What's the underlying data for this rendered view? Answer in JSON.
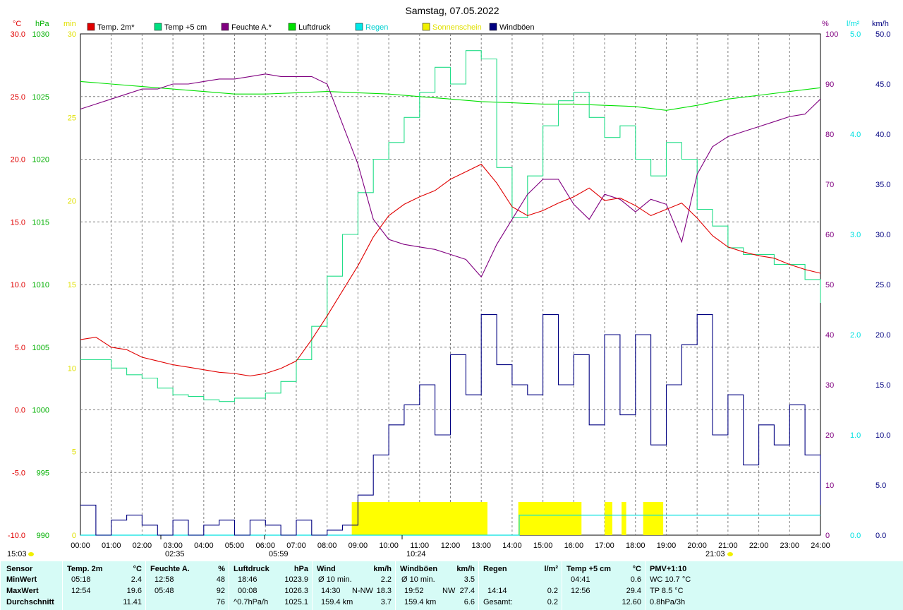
{
  "chart_data": {
    "type": "line",
    "title": "Samstag, 07.05.2022",
    "x_ticks": [
      "00:00",
      "01:00",
      "02:00",
      "03:00",
      "04:00",
      "05:00",
      "06:00",
      "07:00",
      "08:00",
      "09:00",
      "10:00",
      "11:00",
      "12:00",
      "13:00",
      "14:00",
      "15:00",
      "16:00",
      "17:00",
      "18:00",
      "19:00",
      "20:00",
      "21:00",
      "22:00",
      "23:00",
      "24:00"
    ],
    "legend": [
      {
        "name": "Temp. 2m*",
        "color": "#e00000"
      },
      {
        "name": "Temp +5 cm",
        "color": "#00e080"
      },
      {
        "name": "Feuchte A.*",
        "color": "#800080"
      },
      {
        "name": "Luftdruck",
        "color": "#00e000"
      },
      {
        "name": "Regen",
        "color": "#00e8e8"
      },
      {
        "name": "Sonnenschein",
        "color": "#f0f000"
      },
      {
        "name": "Windböen",
        "color": "#000080"
      }
    ],
    "axes": {
      "temp": {
        "unit": "°C",
        "color": "#e00000",
        "ticks": [
          "30.0",
          "25.0",
          "20.0",
          "15.0",
          "10.0",
          "5.0",
          "0.0",
          "-5.0",
          "-10.0"
        ],
        "range": [
          -10,
          30
        ]
      },
      "pressure": {
        "unit": "hPa",
        "color": "#00b000",
        "ticks": [
          "1030",
          "1025",
          "1020",
          "1015",
          "1010",
          "1005",
          "1000",
          "995",
          "990"
        ],
        "range": [
          990,
          1030
        ]
      },
      "sun": {
        "unit": "min",
        "color": "#e0e000",
        "ticks": [
          "30",
          "25",
          "20",
          "15",
          "10",
          "5",
          "0"
        ],
        "range": [
          0,
          30
        ]
      },
      "humidity": {
        "unit": "%",
        "color": "#800080",
        "ticks": [
          "100",
          "90",
          "80",
          "70",
          "60",
          "50",
          "40",
          "30",
          "20",
          "10",
          "0"
        ],
        "range": [
          0,
          100
        ]
      },
      "rain": {
        "unit": "l/m²",
        "color": "#00e0e0",
        "ticks": [
          "5.0",
          "4.0",
          "3.0",
          "2.0",
          "1.0",
          "0.0"
        ],
        "range": [
          0,
          5
        ]
      },
      "gust": {
        "unit": "km/h",
        "color": "#000080",
        "ticks": [
          "50.0",
          "45.0",
          "40.0",
          "35.0",
          "30.0",
          "25.0",
          "20.0",
          "15.0",
          "10.0",
          "5.0",
          "0.0"
        ],
        "range": [
          0,
          50
        ]
      }
    },
    "series": [
      {
        "name": "Temp. 2m*",
        "axis": "temp",
        "color": "#e00000",
        "x": [
          0,
          0.5,
          1,
          1.5,
          2,
          2.5,
          3,
          3.5,
          4,
          4.5,
          5,
          5.5,
          6,
          6.5,
          7,
          7.5,
          8,
          8.5,
          9,
          9.5,
          10,
          10.5,
          11,
          11.5,
          12,
          12.5,
          13,
          13.5,
          14,
          14.5,
          15,
          15.5,
          16,
          16.5,
          17,
          17.5,
          18,
          18.5,
          19,
          19.5,
          20,
          20.5,
          21,
          21.5,
          22,
          22.5,
          23,
          23.5,
          24
        ],
        "values": [
          5.6,
          5.8,
          5.0,
          4.8,
          4.2,
          3.9,
          3.6,
          3.4,
          3.2,
          3.0,
          2.9,
          2.7,
          2.9,
          3.3,
          3.9,
          5.6,
          7.5,
          9.5,
          11.5,
          13.8,
          15.5,
          16.4,
          17.0,
          17.5,
          18.4,
          19.0,
          19.6,
          18.1,
          16.2,
          15.5,
          15.9,
          16.5,
          17.0,
          17.7,
          16.7,
          16.9,
          16.3,
          15.5,
          16.0,
          16.5,
          15.3,
          13.9,
          13.0,
          12.6,
          12.3,
          12.1,
          11.6,
          11.2,
          10.9
        ]
      },
      {
        "name": "Temp +5 cm",
        "axis": "sun",
        "color": "#22dd88",
        "x": [
          0,
          0.5,
          1,
          1.5,
          2,
          2.5,
          3,
          3.5,
          4,
          4.5,
          5,
          5.5,
          6,
          6.5,
          7,
          7.5,
          8,
          8.5,
          9,
          9.5,
          10,
          10.5,
          11,
          11.5,
          12,
          12.5,
          13,
          13.5,
          14,
          14.5,
          15,
          15.5,
          16,
          16.5,
          17,
          17.5,
          18,
          18.5,
          19,
          19.5,
          20,
          20.5,
          21,
          21.5,
          22,
          22.5,
          23,
          23.5,
          24
        ],
        "values": [
          10.5,
          10.5,
          10.0,
          9.6,
          9.4,
          8.8,
          8.4,
          8.3,
          8.1,
          8.0,
          8.2,
          8.2,
          8.5,
          9.2,
          10.5,
          12.5,
          15.5,
          18.0,
          20.5,
          22.5,
          23.5,
          25.0,
          26.5,
          28.0,
          27.0,
          29.0,
          28.5,
          22.0,
          19.0,
          21.5,
          24.5,
          26.0,
          26.5,
          25.0,
          23.8,
          24.5,
          22.5,
          21.5,
          23.5,
          22.5,
          19.5,
          18.5,
          17.2,
          16.8,
          16.8,
          16.2,
          16.2,
          15.3,
          13.9
        ]
      },
      {
        "name": "Feuchte A.*",
        "axis": "humidity",
        "color": "#800080",
        "x": [
          0,
          0.5,
          1,
          1.5,
          2,
          2.5,
          3,
          3.5,
          4,
          4.5,
          5,
          5.5,
          6,
          6.5,
          7,
          7.5,
          8,
          8.5,
          9,
          9.5,
          10,
          10.5,
          11,
          11.5,
          12,
          12.5,
          13,
          13.5,
          14,
          14.5,
          15,
          15.5,
          16,
          16.5,
          17,
          17.5,
          18,
          18.5,
          19,
          19.5,
          20,
          20.5,
          21,
          21.5,
          22,
          22.5,
          23,
          23.5,
          24
        ],
        "values": [
          85,
          86,
          87,
          88,
          89,
          89,
          90,
          90,
          90.5,
          91,
          91,
          91.5,
          92,
          91.5,
          91.5,
          91.5,
          90,
          82,
          74,
          63,
          59,
          58,
          57.5,
          57,
          56,
          55,
          51.5,
          58,
          63,
          68,
          71,
          71,
          66,
          63,
          68,
          67,
          64.5,
          67,
          66,
          58.5,
          72,
          77.5,
          79.5,
          80.5,
          81.5,
          82.5,
          83.5,
          84,
          87
        ]
      },
      {
        "name": "Luftdruck",
        "axis": "pressure",
        "color": "#00e000",
        "x": [
          0,
          1,
          2,
          3,
          4,
          5,
          6,
          7,
          8,
          9,
          10,
          11,
          12,
          13,
          14,
          15,
          16,
          17,
          18,
          19,
          20,
          21,
          22,
          23,
          24
        ],
        "values": [
          1026.2,
          1026.0,
          1025.8,
          1025.6,
          1025.4,
          1025.2,
          1025.2,
          1025.3,
          1025.4,
          1025.3,
          1025.2,
          1025.0,
          1024.8,
          1024.6,
          1024.5,
          1024.4,
          1024.4,
          1024.3,
          1024.2,
          1023.9,
          1024.3,
          1024.8,
          1025.1,
          1025.4,
          1025.7
        ]
      },
      {
        "name": "Windböen",
        "axis": "gust",
        "color": "#000080",
        "x": [
          0,
          0.5,
          1,
          1.5,
          2,
          2.5,
          3,
          3.5,
          4,
          4.5,
          5,
          5.5,
          6,
          6.5,
          7,
          7.5,
          8,
          8.5,
          9,
          9.5,
          10,
          10.5,
          11,
          11.5,
          12,
          12.5,
          13,
          13.5,
          14,
          14.5,
          15,
          15.5,
          16,
          16.5,
          17,
          17.5,
          18,
          18.5,
          19,
          19.5,
          20,
          20.5,
          21,
          21.5,
          22,
          22.5,
          23,
          23.5,
          24
        ],
        "values": [
          3,
          0,
          1.5,
          2,
          1,
          0,
          1.5,
          0,
          1,
          1.5,
          0,
          1.5,
          1,
          0,
          1.5,
          0,
          0.5,
          1,
          4,
          8,
          11,
          13,
          15,
          10,
          18,
          14,
          22,
          17,
          15,
          14,
          22,
          15,
          18,
          11,
          20,
          12,
          20,
          9,
          15,
          19,
          22,
          10,
          14,
          7,
          11,
          9,
          13,
          8,
          3
        ]
      }
    ],
    "sunshine_hours": [
      [
        8.8,
        13.2
      ],
      [
        14.2,
        16.25
      ],
      [
        17.0,
        17.25
      ],
      [
        17.55,
        17.7
      ],
      [
        18.25,
        18.9
      ]
    ],
    "rain_total_value": 0.2,
    "markers_bottom": {
      "left": "15:03",
      "right": "21:03"
    },
    "markers_axis": [
      "02:35",
      "05:59",
      "10:24"
    ]
  },
  "stats": {
    "headers": [
      {
        "name": "Sensor",
        "unit": ""
      },
      {
        "name": "Temp. 2m",
        "unit": "°C"
      },
      {
        "name": "Feuchte A.",
        "unit": "%"
      },
      {
        "name": "Luftdruck",
        "unit": "hPa"
      },
      {
        "name": "Wind",
        "unit": "km/h"
      },
      {
        "name": "Windböen",
        "unit": "km/h"
      },
      {
        "name": "Regen",
        "unit": "l/m²"
      },
      {
        "name": "Temp +5 cm",
        "unit": "°C"
      },
      {
        "name": "PMV+1:10",
        "unit": ""
      }
    ],
    "row_labels": [
      "MinWert",
      "MaxWert",
      "Durchschnitt"
    ],
    "temp": [
      [
        "05:18",
        "2.4"
      ],
      [
        "12:54",
        "19.6"
      ],
      [
        "",
        "11.41"
      ]
    ],
    "hum": [
      [
        "12:58",
        "48"
      ],
      [
        "05:48",
        "92"
      ],
      [
        "",
        "76"
      ]
    ],
    "press": [
      [
        "18:46",
        "1023.9"
      ],
      [
        "00:08",
        "1026.3"
      ],
      [
        "^0.7hPa/h",
        "1025.1"
      ]
    ],
    "wind": [
      [
        "Ø 10 min.",
        "",
        "2.2"
      ],
      [
        "14:30",
        "N-NW",
        "18.3"
      ],
      [
        "159.4 km",
        "",
        "3.7"
      ]
    ],
    "gust": [
      [
        "Ø 10 min.",
        "",
        "3.5"
      ],
      [
        "19:52",
        "NW",
        "27.4"
      ],
      [
        "159.4 km",
        "",
        "6.6"
      ]
    ],
    "rain": [
      [
        "",
        "",
        ""
      ],
      [
        "14:14",
        "",
        "0.2"
      ],
      [
        "Gesamt:",
        "",
        "0.2"
      ]
    ],
    "t5": [
      [
        "04:41",
        "0.6"
      ],
      [
        "12:56",
        "29.4"
      ],
      [
        "",
        "12.60"
      ]
    ],
    "pmv": [
      "WC 10.7 °C",
      "TP 8.5 °C",
      "0.8hPa/3h"
    ]
  }
}
